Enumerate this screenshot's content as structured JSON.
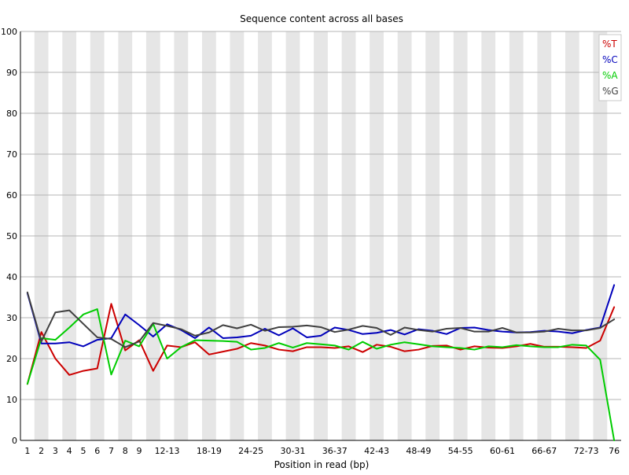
{
  "chart_data": {
    "type": "line",
    "title": "Sequence content across all bases",
    "xlabel": "Position in read (bp)",
    "ylabel": "",
    "ylim": [
      0,
      100
    ],
    "grid": true,
    "legend_position": "top-right",
    "yticks": [
      "0",
      "10",
      "20",
      "30",
      "40",
      "50",
      "60",
      "70",
      "80",
      "90",
      "100"
    ],
    "categories": [
      "1",
      "2",
      "3",
      "4",
      "5",
      "6",
      "7",
      "8",
      "9",
      "10-11",
      "12-13",
      "14-15",
      "16-17",
      "18-19",
      "20-21",
      "22-23",
      "24-25",
      "26-27",
      "28-29",
      "30-31",
      "32-33",
      "34-35",
      "36-37",
      "38-39",
      "40-41",
      "42-43",
      "44-45",
      "46-47",
      "48-49",
      "50-51",
      "52-53",
      "54-55",
      "56-57",
      "58-59",
      "60-61",
      "62-63",
      "64-65",
      "66-67",
      "68-69",
      "70-71",
      "72-73",
      "74-75",
      "76"
    ],
    "tick_labels": [
      "1",
      "2",
      "3",
      "4",
      "5",
      "6",
      "7",
      "8",
      "9",
      "",
      "12-13",
      "",
      "",
      "18-19",
      "",
      "",
      "24-25",
      "",
      "",
      "30-31",
      "",
      "",
      "36-37",
      "",
      "",
      "42-43",
      "",
      "",
      "48-49",
      "",
      "",
      "54-55",
      "",
      "",
      "60-61",
      "",
      "",
      "66-67",
      "",
      "",
      "72-73",
      "",
      "76"
    ],
    "series": [
      {
        "name": "%T",
        "color": "#cc0000",
        "values": [
          13.8,
          26.5,
          20.0,
          16.0,
          17.0,
          17.6,
          33.4,
          22.0,
          24.5,
          17.0,
          23.2,
          22.8,
          24.0,
          21.0,
          21.7,
          22.4,
          23.8,
          23.2,
          22.2,
          21.8,
          22.8,
          22.8,
          22.6,
          23.0,
          21.6,
          23.4,
          22.9,
          21.8,
          22.2,
          23.1,
          23.2,
          22.2,
          23.0,
          22.7,
          22.6,
          23.0,
          23.6,
          22.9,
          22.9,
          22.8,
          22.6,
          24.4,
          32.6
        ]
      },
      {
        "name": "%C",
        "color": "#0000bb",
        "values": [
          36.0,
          23.7,
          23.7,
          24.0,
          23.0,
          24.6,
          25.0,
          30.8,
          28.2,
          25.4,
          28.4,
          27.0,
          25.0,
          27.6,
          25.0,
          25.2,
          25.6,
          27.3,
          25.7,
          27.4,
          25.2,
          25.6,
          27.6,
          27.0,
          26.0,
          26.3,
          27.0,
          25.9,
          27.2,
          26.8,
          26.0,
          27.5,
          27.6,
          27.0,
          26.6,
          26.4,
          26.5,
          26.8,
          26.6,
          26.2,
          27.0,
          27.6,
          38.0
        ]
      },
      {
        "name": "%A",
        "color": "#00cc00",
        "values": [
          13.8,
          25.0,
          24.6,
          27.6,
          30.8,
          32.1,
          16.1,
          24.4,
          23.0,
          28.5,
          20.0,
          22.8,
          24.5,
          24.4,
          24.3,
          24.1,
          22.2,
          22.6,
          23.8,
          22.7,
          23.8,
          23.5,
          23.2,
          22.2,
          24.1,
          22.4,
          23.4,
          24.0,
          23.5,
          23.0,
          22.8,
          22.6,
          22.2,
          23.0,
          22.8,
          23.3,
          23.0,
          22.8,
          22.8,
          23.4,
          23.2,
          19.7,
          0.0
        ]
      },
      {
        "name": "%G",
        "color": "#404040",
        "values": [
          36.2,
          24.2,
          31.3,
          31.8,
          28.5,
          25.2,
          24.8,
          22.8,
          24.2,
          28.7,
          28.0,
          27.2,
          25.6,
          26.4,
          28.2,
          27.4,
          28.3,
          26.8,
          27.7,
          27.8,
          28.1,
          27.7,
          26.5,
          27.1,
          28.0,
          27.5,
          25.8,
          27.6,
          27.0,
          26.6,
          27.3,
          27.5,
          26.6,
          26.6,
          27.5,
          26.4,
          26.4,
          26.6,
          27.3,
          26.9,
          26.9,
          27.5,
          29.6
        ]
      }
    ]
  }
}
